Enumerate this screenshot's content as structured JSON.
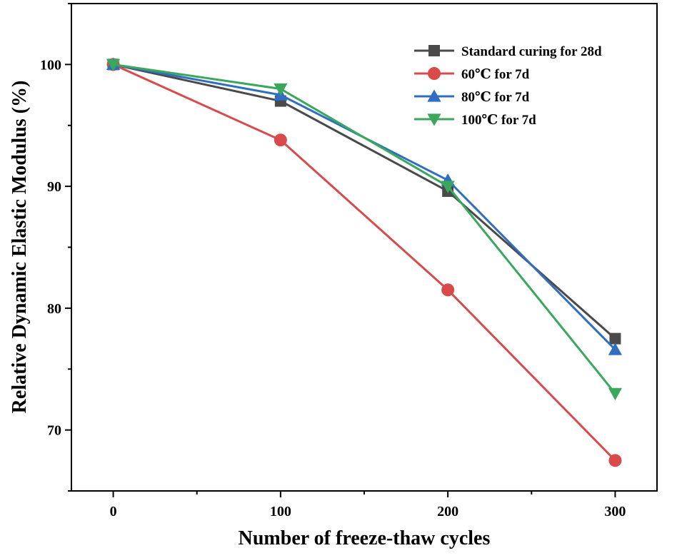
{
  "chart_data": {
    "type": "line",
    "title": "",
    "xlabel": "Number of freeze-thaw cycles",
    "ylabel": "Relative Dynamic Elastic Modulus (%)",
    "x": [
      0,
      100,
      200,
      300
    ],
    "xlim": [
      -25,
      325
    ],
    "ylim": [
      65,
      105
    ],
    "xticks": [
      "0",
      "100",
      "200",
      "300"
    ],
    "yticks": [
      "70",
      "80",
      "90",
      "100"
    ],
    "legend_position": "top-right",
    "grid": false,
    "series": [
      {
        "name": "Standard curing for 28d",
        "values": [
          100,
          97.0,
          89.6,
          77.5
        ],
        "color": "#4a4a4a",
        "marker": "square"
      },
      {
        "name": "60℃ for 7d",
        "values": [
          100,
          93.8,
          81.5,
          67.5
        ],
        "color": "#d94a4a",
        "marker": "circle"
      },
      {
        "name": "80℃ for 7d",
        "values": [
          100,
          97.5,
          90.5,
          76.6
        ],
        "color": "#2f6ec0",
        "marker": "triangle-up"
      },
      {
        "name": "100℃ for 7d",
        "values": [
          100,
          98.0,
          90.0,
          73.0
        ],
        "color": "#3aa85c",
        "marker": "triangle-down"
      }
    ]
  }
}
